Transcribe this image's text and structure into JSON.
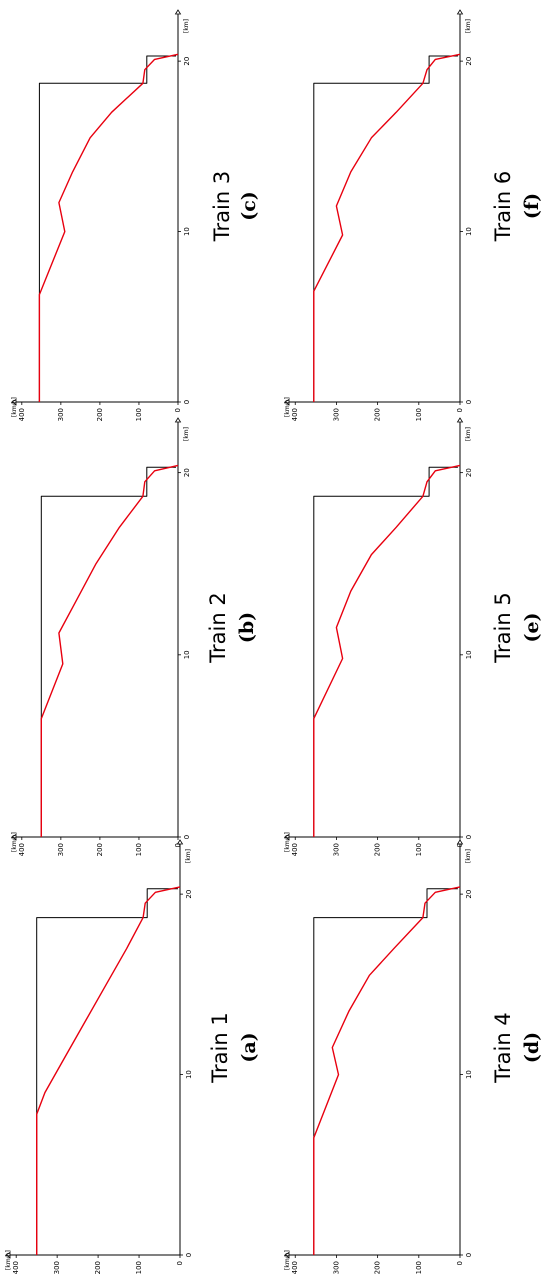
{
  "chart_data": [
    {
      "type": "line",
      "title": "Train 1",
      "panel_label": "(a)",
      "xlabel": "[km]",
      "ylabel": "[km/h]",
      "xlim": [
        0,
        23
      ],
      "ylim": [
        0,
        420
      ],
      "xticks": [
        "0",
        "10",
        "20"
      ],
      "yticks": [
        "100",
        "200",
        "300",
        "400"
      ],
      "series": [
        {
          "color": "#000000",
          "x": [
            0,
            18.7,
            18.7,
            20.3,
            20.3
          ],
          "y": [
            350,
            350,
            80,
            80,
            5
          ]
        },
        {
          "color": "#e8000f",
          "x": [
            0,
            7.8,
            9,
            11,
            13,
            15,
            17,
            18.7,
            19.5,
            20.1,
            20.4
          ],
          "y": [
            350,
            350,
            330,
            280,
            230,
            180,
            130,
            90,
            85,
            60,
            0
          ]
        }
      ]
    },
    {
      "type": "line",
      "title": "Train 2",
      "panel_label": "(b)",
      "xlabel": "[km]",
      "ylabel": "[km/h]",
      "xlim": [
        0,
        23
      ],
      "ylim": [
        0,
        420
      ],
      "xticks": [
        "0",
        "10",
        "20"
      ],
      "yticks": [
        "100",
        "200",
        "300",
        "400"
      ],
      "series": [
        {
          "color": "#000000",
          "x": [
            0,
            18.7,
            18.7,
            20.3,
            20.3
          ],
          "y": [
            350,
            350,
            80,
            80,
            5
          ]
        },
        {
          "color": "#e8000f",
          "x": [
            0,
            6.5,
            9.5,
            11.2,
            13,
            15,
            17,
            18.7,
            19.5,
            20.1,
            20.4
          ],
          "y": [
            350,
            350,
            295,
            305,
            260,
            210,
            150,
            90,
            85,
            60,
            0
          ]
        }
      ]
    },
    {
      "type": "line",
      "title": "Train 3",
      "panel_label": "(c)",
      "xlabel": "[km]",
      "ylabel": "[km/h]",
      "xlim": [
        0,
        23
      ],
      "ylim": [
        0,
        420
      ],
      "xticks": [
        "0",
        "10",
        "20"
      ],
      "yticks": [
        "100",
        "200",
        "300",
        "400"
      ],
      "series": [
        {
          "color": "#000000",
          "x": [
            0,
            18.7,
            18.7,
            20.3,
            20.3
          ],
          "y": [
            355,
            355,
            80,
            80,
            5
          ]
        },
        {
          "color": "#e8000f",
          "x": [
            0,
            6.3,
            10,
            11.7,
            13.5,
            15.5,
            17,
            18.7,
            19.5,
            20.1,
            20.4
          ],
          "y": [
            355,
            355,
            290,
            305,
            270,
            225,
            170,
            90,
            85,
            60,
            0
          ]
        }
      ]
    },
    {
      "type": "line",
      "title": "Train 4",
      "panel_label": "(d)",
      "xlabel": "[km]",
      "ylabel": "[km/h]",
      "xlim": [
        0,
        23
      ],
      "ylim": [
        0,
        420
      ],
      "xticks": [
        "0",
        "10",
        "20"
      ],
      "yticks": [
        "100",
        "200",
        "300",
        "400"
      ],
      "series": [
        {
          "color": "#000000",
          "x": [
            0,
            18.7,
            18.7,
            20.3,
            20.3
          ],
          "y": [
            355,
            355,
            80,
            80,
            5
          ]
        },
        {
          "color": "#e8000f",
          "x": [
            0,
            6.5,
            10,
            11.5,
            13.5,
            15.5,
            17,
            18.7,
            19.5,
            20.1,
            20.4
          ],
          "y": [
            355,
            355,
            295,
            310,
            270,
            220,
            160,
            90,
            85,
            60,
            0
          ]
        }
      ]
    },
    {
      "type": "line",
      "title": "Train 5",
      "panel_label": "(e)",
      "xlabel": "[km]",
      "ylabel": "[km/h]",
      "xlim": [
        0,
        23
      ],
      "ylim": [
        0,
        420
      ],
      "xticks": [
        "0",
        "10",
        "20"
      ],
      "yticks": [
        "100",
        "200",
        "300",
        "400"
      ],
      "series": [
        {
          "color": "#000000",
          "x": [
            0,
            18.7,
            18.7,
            20.3,
            20.3
          ],
          "y": [
            355,
            355,
            75,
            75,
            5
          ]
        },
        {
          "color": "#e8000f",
          "x": [
            0,
            6.5,
            9.8,
            11.5,
            13.5,
            15.5,
            17,
            18.7,
            19.5,
            20.1,
            20.4
          ],
          "y": [
            355,
            355,
            285,
            300,
            265,
            215,
            155,
            90,
            80,
            60,
            0
          ]
        }
      ]
    },
    {
      "type": "line",
      "title": "Train 6",
      "panel_label": "(f)",
      "xlabel": "[km]",
      "ylabel": "[km/h]",
      "xlim": [
        0,
        23
      ],
      "ylim": [
        0,
        420
      ],
      "xticks": [
        "0",
        "10",
        "20"
      ],
      "yticks": [
        "100",
        "200",
        "300",
        "400"
      ],
      "series": [
        {
          "color": "#000000",
          "x": [
            0,
            18.7,
            18.7,
            20.3,
            20.3
          ],
          "y": [
            355,
            355,
            75,
            75,
            5
          ]
        },
        {
          "color": "#e8000f",
          "x": [
            0,
            6.5,
            9.8,
            11.5,
            13.5,
            15.5,
            17,
            18.7,
            19.5,
            20.1,
            20.4
          ],
          "y": [
            355,
            355,
            285,
            300,
            265,
            215,
            155,
            90,
            80,
            60,
            0
          ]
        }
      ]
    }
  ]
}
